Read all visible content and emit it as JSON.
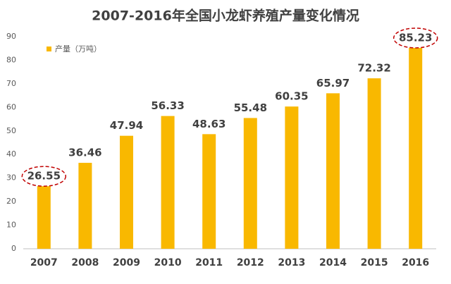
{
  "chart_data": {
    "type": "bar",
    "title": "2007-2016年全国小龙虾养殖产量变化情况",
    "categories": [
      "2007",
      "2008",
      "2009",
      "2010",
      "2011",
      "2012",
      "2013",
      "2014",
      "2015",
      "2016"
    ],
    "series": [
      {
        "name": "产量（万吨）",
        "color": "#f9b800",
        "values": [
          26.55,
          36.46,
          47.94,
          56.33,
          48.63,
          55.48,
          60.35,
          65.97,
          72.32,
          85.23
        ]
      }
    ],
    "ylim": [
      0,
      90
    ],
    "yticks": [
      0,
      10,
      20,
      30,
      40,
      50,
      60,
      70,
      80,
      90
    ],
    "grid": false
  }
}
